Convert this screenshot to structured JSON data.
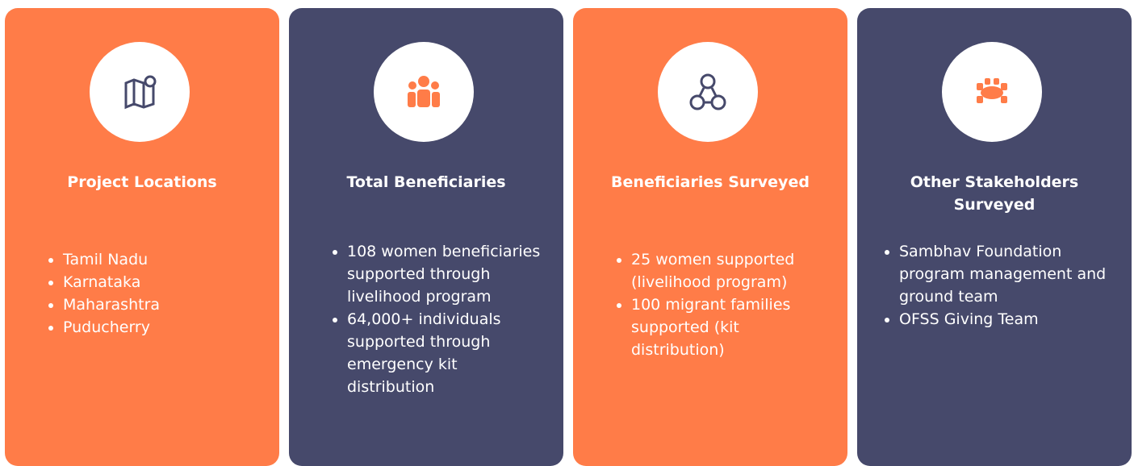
{
  "cards": [
    {
      "title": "Project Locations",
      "items": [
        "Tamil Nadu",
        "Karnataka",
        "Maharashtra",
        "Puducherry"
      ]
    },
    {
      "title": "Total Beneficiaries",
      "items": [
        "108 women beneficiaries supported through livelihood program",
        "64,000+ individuals supported through emergency kit distribution"
      ]
    },
    {
      "title": "Beneficiaries Surveyed",
      "items": [
        "25 women supported (livelihood program)",
        "100 migrant families supported (kit distribution)"
      ]
    },
    {
      "title": "Other Stakeholders Surveyed",
      "items": [
        "Sambhav Foundation program management and ground team",
        "OFSS Giving Team"
      ]
    }
  ]
}
